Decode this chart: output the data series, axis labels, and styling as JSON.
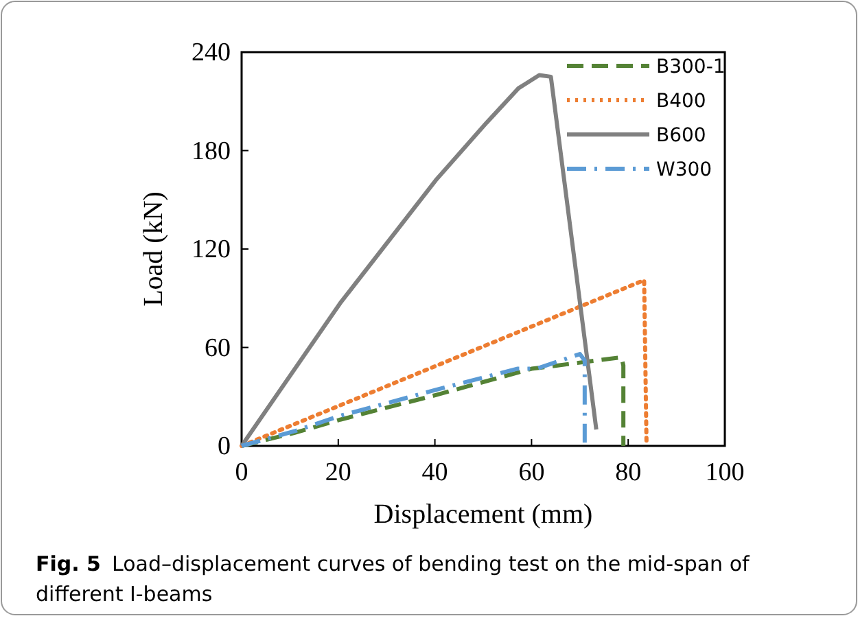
{
  "chart_data": {
    "type": "line",
    "xlabel": "Displacement (mm)",
    "ylabel": "Load (kN)",
    "xlim": [
      0,
      100
    ],
    "ylim": [
      0,
      240
    ],
    "xticks": [
      0,
      20,
      40,
      60,
      80,
      100
    ],
    "yticks": [
      0,
      60,
      120,
      180,
      240
    ],
    "grid": false,
    "legend": "top right",
    "series": [
      {
        "name": "B300-1",
        "color": "#548235",
        "line_style": "dashed",
        "x": [
          0,
          11,
          20.4,
          40.2,
          60,
          78.6,
          79,
          79
        ],
        "values": [
          0,
          8,
          16,
          31,
          47,
          54,
          49,
          0
        ]
      },
      {
        "name": "B400",
        "color": "#ed7d31",
        "line_style": "dotted",
        "x": [
          0,
          83.3,
          83.8
        ],
        "values": [
          0,
          101,
          0
        ]
      },
      {
        "name": "B600",
        "color": "#808080",
        "line_style": "solid",
        "x": [
          0,
          20.4,
          40.2,
          50.7,
          57.3,
          61.6,
          64,
          73.4
        ],
        "values": [
          0,
          87,
          162,
          197,
          218,
          226,
          225,
          10
        ]
      },
      {
        "name": "W300",
        "color": "#5b9bd5",
        "line_style": "dashdot",
        "x": [
          0,
          11,
          20,
          40,
          57,
          61,
          70,
          71,
          71
        ],
        "values": [
          0,
          9,
          18,
          34,
          47,
          47,
          56,
          52,
          2
        ]
      }
    ],
    "annotations": [
      "Fig. 5  Load–displacement curves of bending test on the mid-span of different I-beams"
    ]
  }
}
